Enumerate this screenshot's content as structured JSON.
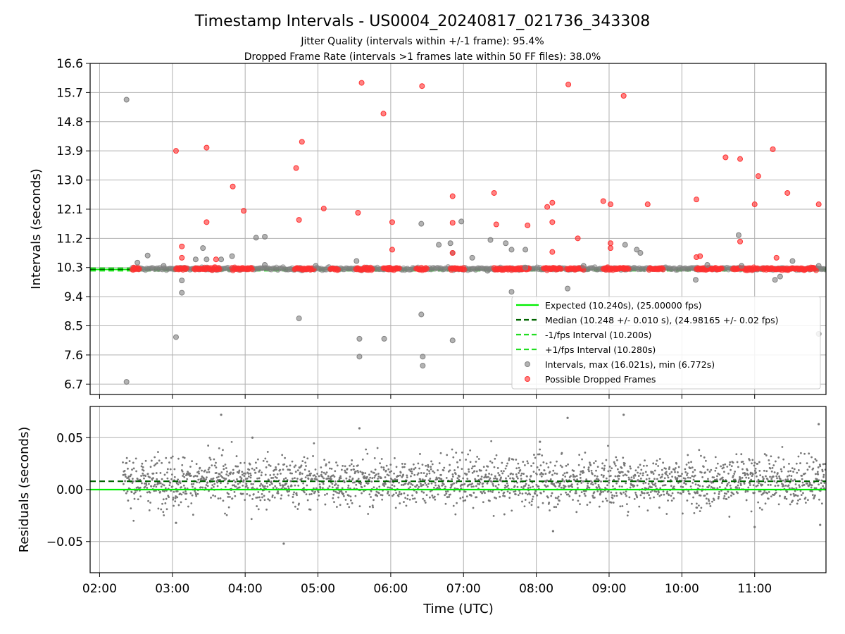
{
  "chart_data": [
    {
      "type": "scatter",
      "title": "Timestamp Intervals - US0004_20240817_021736_343308",
      "subtitle_lines": [
        "Jitter Quality (intervals within +/-1 frame): 95.4%",
        "Dropped Frame Rate (intervals >1 frames late within 50 FF files): 38.0%"
      ],
      "xlabel": "",
      "ylabel": "Intervals (seconds)",
      "x_unit": "hours UTC",
      "xlim": [
        1.87,
        11.98
      ],
      "ylim": [
        6.38,
        16.6
      ],
      "y_ticks": [
        6.7,
        7.6,
        8.5,
        9.4,
        10.3,
        11.2,
        12.1,
        13.0,
        13.9,
        14.8,
        15.7,
        16.6
      ],
      "y_tick_labels": [
        "6.7",
        "7.6",
        "8.5",
        "9.4",
        "10.3",
        "11.2",
        "12.1",
        "13.0",
        "13.9",
        "14.8",
        "15.7",
        "16.6"
      ],
      "grid": true,
      "legend_position": "lower-right",
      "legend": [
        "Expected (10.240s), (25.00000 fps)",
        "Median (10.248 +/- 0.010 s), (24.98165 +/- 0.02 fps)",
        "-1/fps Interval (10.200s)",
        "+1/fps Interval (10.280s)",
        "Intervals, max (16.021s), min (6.772s)",
        "Possible Dropped Frames"
      ],
      "reference_lines": [
        {
          "y": 10.24,
          "style": "solid",
          "color": "#00ee00"
        },
        {
          "y": 10.248,
          "style": "dashed",
          "color": "#006400"
        },
        {
          "y": 10.2,
          "style": "dashed",
          "color": "#22dd22"
        },
        {
          "y": 10.28,
          "style": "dashed",
          "color": "#22dd22"
        }
      ],
      "band": {
        "x_start": 2.45,
        "x_end": 11.98,
        "y": 10.26,
        "note": "dense cluster of intervals along expected value"
      },
      "series": [
        {
          "name": "Intervals, max (16.021s), min (6.772s)",
          "color": "#808080",
          "points": [
            [
              2.37,
              15.48
            ],
            [
              2.37,
              6.77
            ],
            [
              2.52,
              10.45
            ],
            [
              2.66,
              10.67
            ],
            [
              2.88,
              10.35
            ],
            [
              3.05,
              8.15
            ],
            [
              3.13,
              9.9
            ],
            [
              3.13,
              9.52
            ],
            [
              3.32,
              10.55
            ],
            [
              3.42,
              10.9
            ],
            [
              3.47,
              10.55
            ],
            [
              3.67,
              10.55
            ],
            [
              3.82,
              10.65
            ],
            [
              4.15,
              11.22
            ],
            [
              4.27,
              11.25
            ],
            [
              4.27,
              10.38
            ],
            [
              4.74,
              8.73
            ],
            [
              4.97,
              10.35
            ],
            [
              5.53,
              10.5
            ],
            [
              5.57,
              8.1
            ],
            [
              5.57,
              7.55
            ],
            [
              5.91,
              8.1
            ],
            [
              6.42,
              11.65
            ],
            [
              6.42,
              8.85
            ],
            [
              6.44,
              7.55
            ],
            [
              6.44,
              7.27
            ],
            [
              6.66,
              11.0
            ],
            [
              6.82,
              11.05
            ],
            [
              6.85,
              10.75
            ],
            [
              6.85,
              8.05
            ],
            [
              6.97,
              11.72
            ],
            [
              7.12,
              10.6
            ],
            [
              7.33,
              10.2
            ],
            [
              7.37,
              11.15
            ],
            [
              7.58,
              11.05
            ],
            [
              7.66,
              10.85
            ],
            [
              7.66,
              9.55
            ],
            [
              7.85,
              10.85
            ],
            [
              7.85,
              10.3
            ],
            [
              8.43,
              9.65
            ],
            [
              8.65,
              10.35
            ],
            [
              9.22,
              11.0
            ],
            [
              9.38,
              10.85
            ],
            [
              9.43,
              10.75
            ],
            [
              10.19,
              9.92
            ],
            [
              10.35,
              10.38
            ],
            [
              10.78,
              11.3
            ],
            [
              10.82,
              10.35
            ],
            [
              11.28,
              9.92
            ],
            [
              11.35,
              10.02
            ],
            [
              11.52,
              10.5
            ],
            [
              11.88,
              10.35
            ],
            [
              11.88,
              8.25
            ]
          ]
        },
        {
          "name": "Possible Dropped Frames",
          "color": "#ff3030",
          "points": [
            [
              2.47,
              10.3
            ],
            [
              3.05,
              13.9
            ],
            [
              3.13,
              10.95
            ],
            [
              3.13,
              10.6
            ],
            [
              3.47,
              14.0
            ],
            [
              3.47,
              11.7
            ],
            [
              3.6,
              10.55
            ],
            [
              3.83,
              12.8
            ],
            [
              3.98,
              12.05
            ],
            [
              4.7,
              13.37
            ],
            [
              4.74,
              11.77
            ],
            [
              4.78,
              14.18
            ],
            [
              5.08,
              12.12
            ],
            [
              5.55,
              11.99
            ],
            [
              5.6,
              16.0
            ],
            [
              5.9,
              15.05
            ],
            [
              6.02,
              11.7
            ],
            [
              6.02,
              10.85
            ],
            [
              6.43,
              15.9
            ],
            [
              6.85,
              12.5
            ],
            [
              6.85,
              11.68
            ],
            [
              6.85,
              10.75
            ],
            [
              7.42,
              12.6
            ],
            [
              7.45,
              11.63
            ],
            [
              7.88,
              11.6
            ],
            [
              8.15,
              12.17
            ],
            [
              8.22,
              12.3
            ],
            [
              8.22,
              11.7
            ],
            [
              8.22,
              10.78
            ],
            [
              8.44,
              15.95
            ],
            [
              8.57,
              11.2
            ],
            [
              8.92,
              12.35
            ],
            [
              9.02,
              12.25
            ],
            [
              9.02,
              11.05
            ],
            [
              9.02,
              10.9
            ],
            [
              9.2,
              15.6
            ],
            [
              9.53,
              12.25
            ],
            [
              10.2,
              12.4
            ],
            [
              10.2,
              10.62
            ],
            [
              10.25,
              10.65
            ],
            [
              10.6,
              13.7
            ],
            [
              10.8,
              13.65
            ],
            [
              10.8,
              11.1
            ],
            [
              11.0,
              12.25
            ],
            [
              11.05,
              13.12
            ],
            [
              11.25,
              13.95
            ],
            [
              11.3,
              10.6
            ],
            [
              11.45,
              12.6
            ],
            [
              11.88,
              12.25
            ]
          ]
        }
      ]
    },
    {
      "type": "scatter",
      "title": "",
      "xlabel": "Time (UTC)",
      "ylabel": "Residuals (seconds)",
      "x_unit": "hours UTC",
      "xlim": [
        1.87,
        11.98
      ],
      "ylim": [
        -0.08,
        0.08
      ],
      "y_ticks": [
        -0.05,
        0.0,
        0.05
      ],
      "y_tick_labels": [
        "−0.05",
        "0.00",
        "0.05"
      ],
      "x_ticks": [
        2,
        3,
        4,
        5,
        6,
        7,
        8,
        9,
        10,
        11
      ],
      "x_tick_labels": [
        "02:00",
        "03:00",
        "04:00",
        "05:00",
        "06:00",
        "07:00",
        "08:00",
        "09:00",
        "10:00",
        "11:00"
      ],
      "grid": true,
      "reference_lines": [
        {
          "y": 0.0,
          "style": "solid",
          "color": "#00ee00"
        },
        {
          "y": 0.008,
          "style": "dashed",
          "color": "#006400"
        }
      ],
      "residual_cloud": {
        "x_start": 2.32,
        "x_end": 11.98,
        "mean": 0.008,
        "spread": 0.012,
        "point_color": "#777777"
      },
      "outliers": [
        [
          3.67,
          0.072
        ],
        [
          4.53,
          -0.052
        ],
        [
          5.57,
          0.059
        ],
        [
          8.43,
          0.069
        ],
        [
          9.2,
          0.072
        ],
        [
          11.88,
          0.063
        ],
        [
          8.23,
          -0.04
        ],
        [
          11.0,
          -0.036
        ],
        [
          3.05,
          -0.032
        ],
        [
          11.9,
          -0.034
        ],
        [
          8.05,
          0.046
        ],
        [
          4.1,
          0.05
        ]
      ]
    }
  ]
}
